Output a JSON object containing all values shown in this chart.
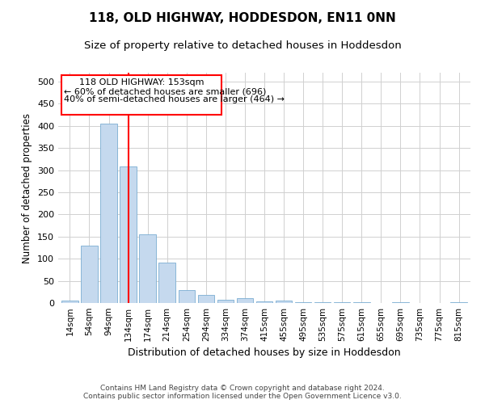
{
  "title": "118, OLD HIGHWAY, HODDESDON, EN11 0NN",
  "subtitle": "Size of property relative to detached houses in Hoddesdon",
  "xlabel": "Distribution of detached houses by size in Hoddesdon",
  "ylabel": "Number of detached properties",
  "footer_line1": "Contains HM Land Registry data © Crown copyright and database right 2024.",
  "footer_line2": "Contains public sector information licensed under the Open Government Licence v3.0.",
  "categories": [
    "14sqm",
    "54sqm",
    "94sqm",
    "134sqm",
    "174sqm",
    "214sqm",
    "254sqm",
    "294sqm",
    "334sqm",
    "374sqm",
    "415sqm",
    "455sqm",
    "495sqm",
    "535sqm",
    "575sqm",
    "615sqm",
    "655sqm",
    "695sqm",
    "735sqm",
    "775sqm",
    "815sqm"
  ],
  "values": [
    5,
    130,
    405,
    308,
    155,
    92,
    29,
    19,
    8,
    11,
    4,
    6,
    2,
    1,
    1,
    1,
    0,
    1,
    0,
    0,
    1
  ],
  "bar_color": "#c5d9ee",
  "bar_edge_color": "#7badd1",
  "annotation_line1": "118 OLD HIGHWAY: 153sqm",
  "annotation_line2": "← 60% of detached houses are smaller (696)",
  "annotation_line3": "40% of semi-detached houses are larger (464) →",
  "ylim": [
    0,
    520
  ],
  "yticks": [
    0,
    50,
    100,
    150,
    200,
    250,
    300,
    350,
    400,
    450,
    500
  ],
  "background_color": "#ffffff",
  "grid_color": "#d0d0d0"
}
